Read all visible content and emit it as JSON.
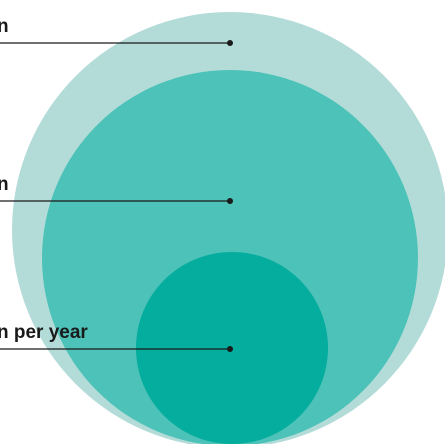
{
  "diagram": {
    "labels": {
      "outer": "n",
      "middle": "n",
      "inner": "n per year"
    },
    "colors": {
      "outer_circle": "#b3dcd9",
      "middle_circle": "#4dc2b8",
      "inner_circle": "#04ad9d",
      "leader_line": "#1a1a1a"
    }
  }
}
